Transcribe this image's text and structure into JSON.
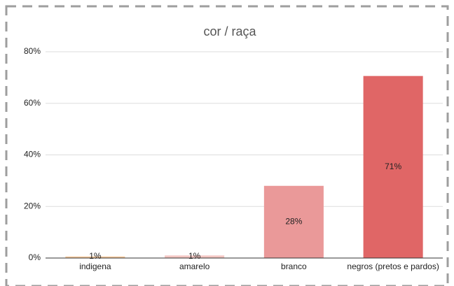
{
  "chart_data": {
    "type": "bar",
    "title": "cor / raça",
    "categories": [
      "indigena",
      "amarelo",
      "branco",
      "negros (pretos e pardos)"
    ],
    "values": [
      0.6,
      1,
      28,
      70.6
    ],
    "value_labels": [
      "1%",
      "1%",
      "28%",
      "71%"
    ],
    "colors": [
      "#f6c89a",
      "#f4c7c3",
      "#ea9999",
      "#e06666"
    ],
    "ylim": [
      0,
      80
    ],
    "yticks": [
      {
        "value": 0,
        "label": "0%"
      },
      {
        "value": 20,
        "label": "20%"
      },
      {
        "value": 40,
        "label": "40%"
      },
      {
        "value": 60,
        "label": "60%"
      },
      {
        "value": 80,
        "label": "80%"
      }
    ],
    "grid": true
  }
}
